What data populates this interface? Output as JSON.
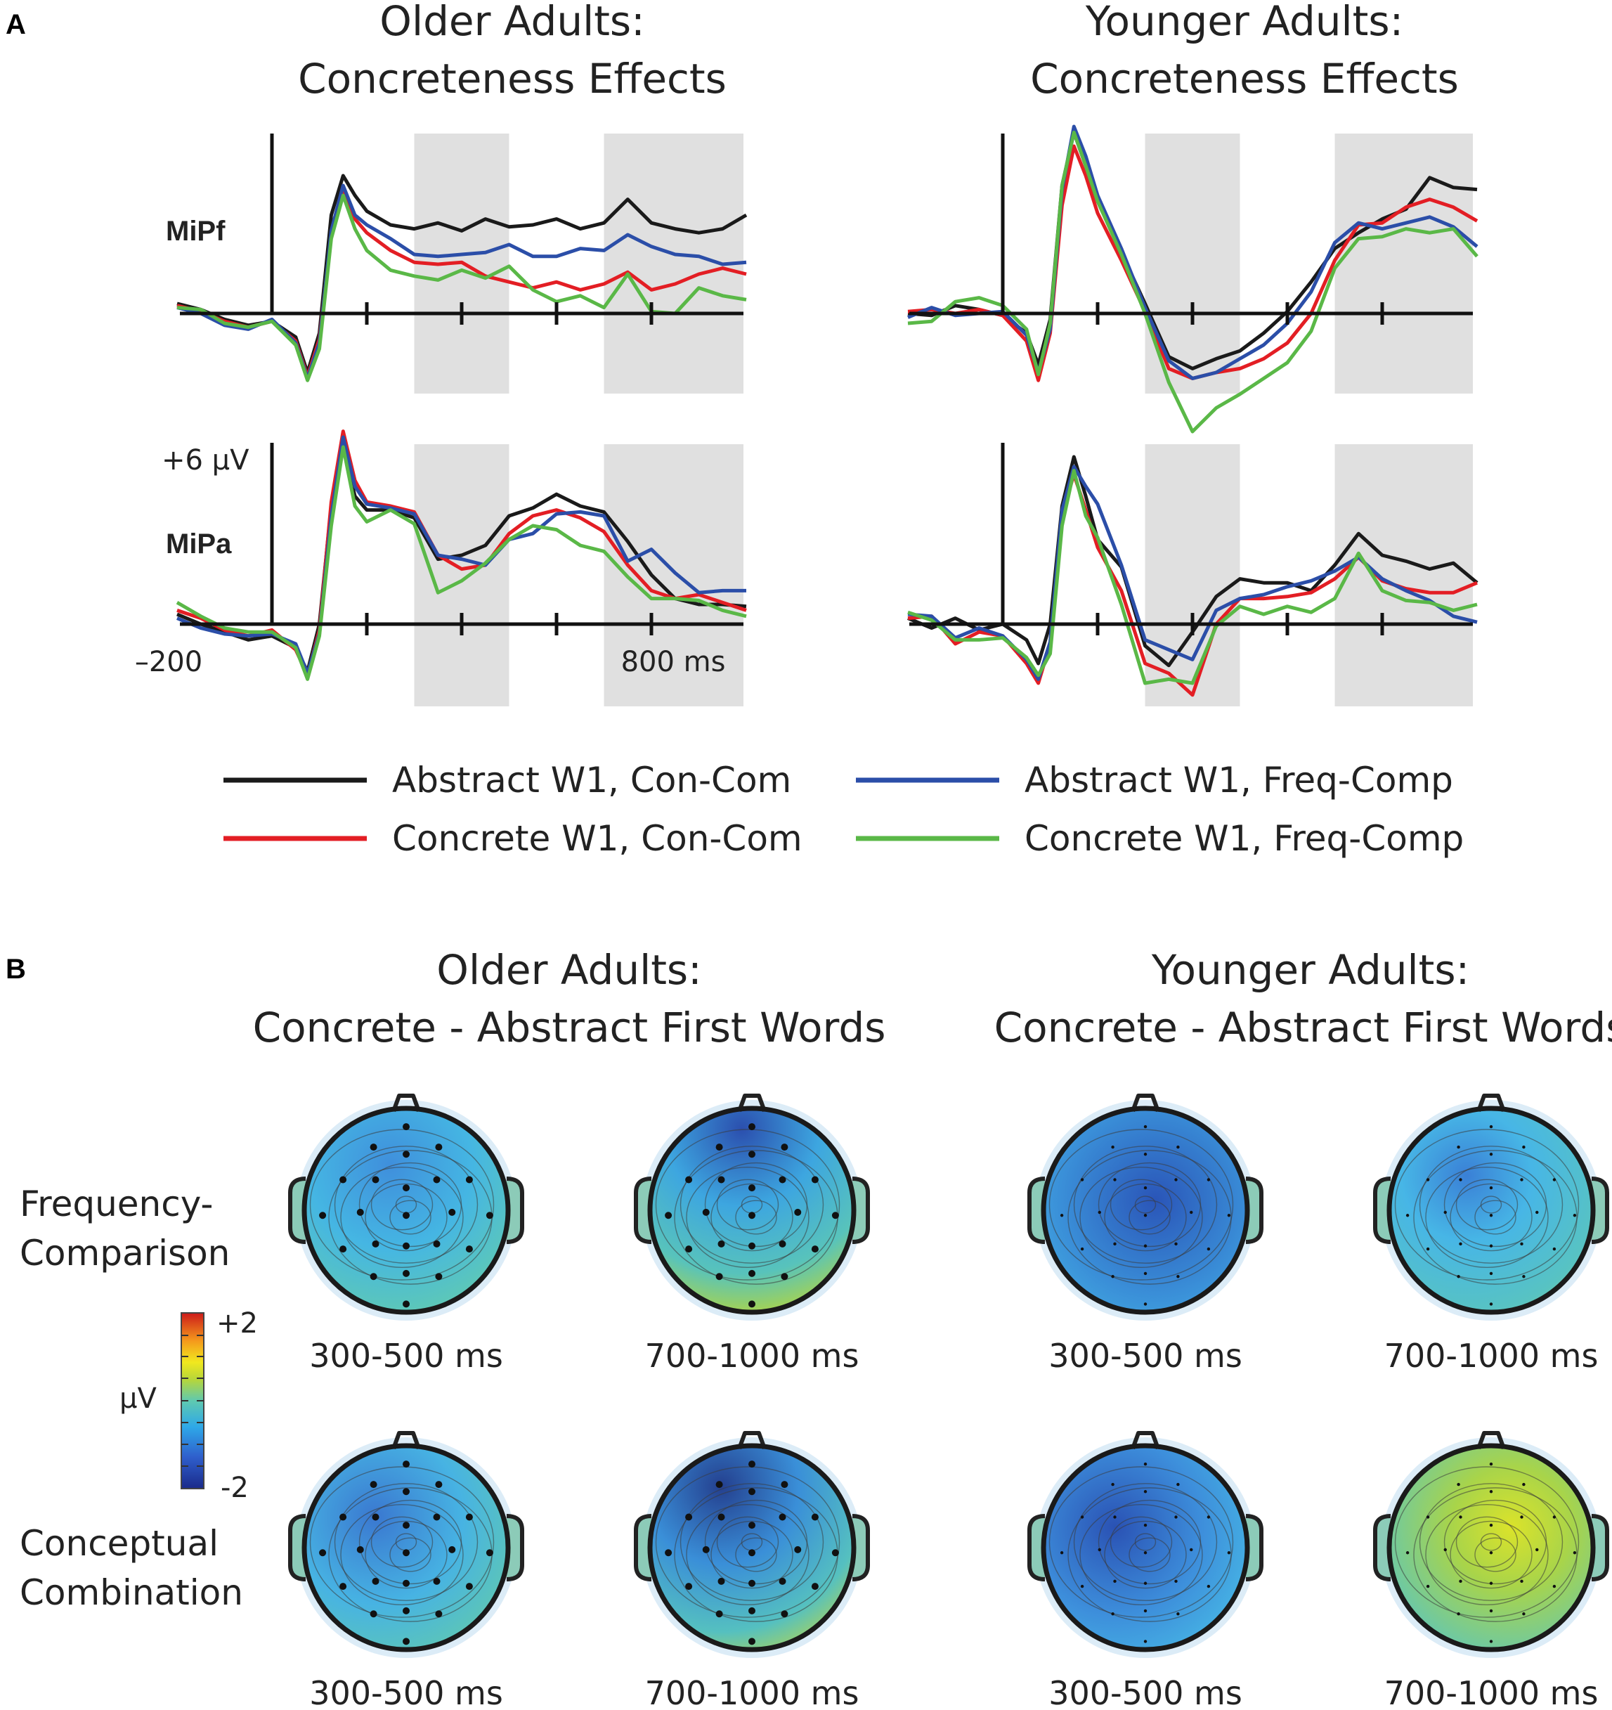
{
  "panel_a": {
    "letter": "A",
    "older_title": [
      "Older Adults:",
      "Concreteness Effects"
    ],
    "younger_title": [
      "Younger Adults:",
      "Concreteness Effects"
    ],
    "electrodes": [
      "MiPf",
      "MiPa"
    ],
    "scale_label": "+6 μV",
    "x_start_label": "–200",
    "x_end_label": "800 ms"
  },
  "panel_b": {
    "letter": "B",
    "older_title": [
      "Older Adults:",
      "Concrete - Abstract First Words"
    ],
    "younger_title": [
      "Younger Adults:",
      "Concrete - Abstract First Words"
    ],
    "row_labels": [
      [
        "Frequency-",
        "Comparison"
      ],
      [
        "Conceptual",
        "Combination"
      ]
    ],
    "windows": [
      "300-500 ms",
      "700-1000 ms"
    ],
    "colorbar": {
      "max_label": "+2",
      "min_label": "-2",
      "unit": "μV"
    }
  },
  "colors": {
    "abstract_concom": "#1a1a1a",
    "concrete_concom": "#e31e24",
    "abstract_freq": "#2b4ea8",
    "concrete_freq": "#5ab847",
    "shade": "#e0e0e0"
  },
  "chart_data": {
    "type": "line",
    "x_unit": "ms",
    "xlim": [
      -200,
      1000
    ],
    "ylim": [
      -4,
      10
    ],
    "y_scale_marker_uv": 6,
    "ticks_ms": [
      0,
      200,
      400,
      600,
      800
    ],
    "shaded_windows_ms": [
      [
        300,
        500
      ],
      [
        700,
        1000
      ]
    ],
    "legend": [
      {
        "key": "abstract_concom",
        "label": "Abstract W1,  Con-Com"
      },
      {
        "key": "abstract_freq",
        "label": "Abstract W1,   Freq-Comp"
      },
      {
        "key": "concrete_concom",
        "label": "Concrete W1, Con-Com"
      },
      {
        "key": "concrete_freq",
        "label": "Concrete W1,  Freq-Comp"
      }
    ],
    "x_ms": [
      -200,
      -150,
      -100,
      -50,
      0,
      50,
      75,
      100,
      125,
      150,
      175,
      200,
      250,
      300,
      350,
      400,
      450,
      500,
      550,
      600,
      650,
      700,
      750,
      800,
      850,
      900,
      950,
      1000
    ],
    "panels": [
      {
        "group": "Older Adults",
        "electrode": "MiPf",
        "series": {
          "abstract_concom": [
            0.5,
            0.2,
            -0.3,
            -0.6,
            -0.4,
            -1.2,
            -3.0,
            -1.0,
            5.0,
            7.0,
            6.0,
            5.2,
            4.5,
            4.3,
            4.6,
            4.2,
            4.8,
            4.4,
            4.5,
            4.8,
            4.3,
            4.6,
            5.8,
            4.6,
            4.3,
            4.1,
            4.3,
            5.0
          ],
          "abstract_freq": [
            0.3,
            0.0,
            -0.6,
            -0.8,
            -0.3,
            -1.5,
            -3.3,
            -1.5,
            4.2,
            6.5,
            5.0,
            4.5,
            3.8,
            3.0,
            2.9,
            3.0,
            3.1,
            3.5,
            2.9,
            2.9,
            3.3,
            3.2,
            4.0,
            3.4,
            3.0,
            2.9,
            2.5,
            2.6
          ],
          "concrete_concom": [
            0.4,
            0.1,
            -0.4,
            -0.7,
            -0.4,
            -1.4,
            -3.2,
            -1.3,
            4.0,
            6.3,
            4.8,
            4.1,
            3.2,
            2.6,
            2.5,
            2.6,
            1.9,
            1.6,
            1.3,
            1.6,
            1.2,
            1.5,
            2.1,
            1.2,
            1.5,
            2.0,
            2.3,
            2.0
          ],
          "concrete_freq": [
            0.3,
            0.2,
            -0.5,
            -0.7,
            -0.4,
            -1.6,
            -3.4,
            -1.8,
            3.8,
            6.0,
            4.3,
            3.2,
            2.2,
            1.9,
            1.7,
            2.2,
            1.8,
            2.4,
            1.2,
            0.6,
            0.9,
            0.3,
            2.0,
            0.1,
            0.0,
            1.3,
            0.9,
            0.7
          ]
        }
      },
      {
        "group": "Older Adults",
        "electrode": "MiPa",
        "series": {
          "abstract_concom": [
            0.5,
            0.0,
            -0.4,
            -0.8,
            -0.6,
            -1.2,
            -2.4,
            0.0,
            6.0,
            9.0,
            6.5,
            5.8,
            5.8,
            5.4,
            3.3,
            3.5,
            4.0,
            5.5,
            5.9,
            6.6,
            6.0,
            5.7,
            4.2,
            2.5,
            1.3,
            1.0,
            1.0,
            0.9
          ],
          "abstract_freq": [
            0.3,
            -0.2,
            -0.5,
            -0.6,
            -0.5,
            -1.0,
            -2.5,
            -0.5,
            5.5,
            9.5,
            7.0,
            6.1,
            5.9,
            5.6,
            3.5,
            3.3,
            3.0,
            4.3,
            4.6,
            5.6,
            5.7,
            5.5,
            3.2,
            3.8,
            2.6,
            1.6,
            1.7,
            1.7
          ],
          "concrete_concom": [
            0.7,
            0.3,
            -0.3,
            -0.6,
            -0.3,
            -1.3,
            -2.6,
            -0.3,
            6.2,
            9.8,
            7.3,
            6.2,
            6.0,
            5.7,
            3.5,
            2.8,
            3.0,
            4.6,
            5.5,
            5.8,
            5.4,
            4.7,
            3.0,
            1.7,
            1.3,
            1.5,
            1.1,
            0.7
          ],
          "concrete_freq": [
            1.1,
            0.4,
            -0.2,
            -0.4,
            -0.4,
            -1.2,
            -2.8,
            -0.6,
            5.0,
            9.0,
            6.0,
            5.2,
            5.8,
            5.1,
            1.6,
            2.2,
            3.1,
            4.3,
            5.0,
            4.8,
            4.0,
            3.7,
            2.4,
            1.3,
            1.3,
            1.2,
            0.7,
            0.4
          ]
        }
      },
      {
        "group": "Younger Adults",
        "electrode": "MiPf",
        "series": {
          "abstract_concom": [
            0.0,
            -0.1,
            0.4,
            0.2,
            -0.1,
            -1.0,
            -2.6,
            -0.3,
            6.5,
            9.2,
            7.5,
            5.7,
            3.1,
            0.5,
            -2.2,
            -2.8,
            -2.3,
            -1.9,
            -1.0,
            0.1,
            1.6,
            3.3,
            4.1,
            4.8,
            5.3,
            6.9,
            6.4,
            6.3
          ],
          "abstract_freq": [
            -0.2,
            0.3,
            -0.1,
            0.0,
            0.1,
            -1.1,
            -3.0,
            -0.8,
            6.3,
            9.5,
            8.0,
            6.0,
            3.3,
            0.3,
            -2.4,
            -3.3,
            -3.0,
            -2.3,
            -1.6,
            -0.5,
            1.1,
            3.6,
            4.6,
            4.3,
            4.6,
            4.9,
            4.4,
            3.4
          ],
          "concrete_concom": [
            0.1,
            0.2,
            0.0,
            0.2,
            -0.1,
            -1.4,
            -3.4,
            -1.0,
            5.5,
            8.5,
            7.0,
            5.1,
            2.7,
            0.1,
            -2.8,
            -3.3,
            -3.0,
            -2.8,
            -2.3,
            -1.5,
            0.0,
            2.7,
            4.5,
            4.6,
            5.4,
            5.8,
            5.4,
            4.7
          ],
          "concrete_freq": [
            -0.5,
            -0.4,
            0.6,
            0.8,
            0.4,
            -0.8,
            -3.1,
            -0.5,
            6.5,
            9.2,
            7.5,
            5.7,
            3.0,
            0.0,
            -3.5,
            -6.0,
            -4.8,
            -4.1,
            -3.3,
            -2.5,
            -0.9,
            2.3,
            3.8,
            3.9,
            4.3,
            4.1,
            4.3,
            2.9
          ]
        }
      },
      {
        "group": "Younger Adults",
        "electrode": "MiPa",
        "series": {
          "abstract_concom": [
            0.3,
            -0.2,
            0.3,
            -0.3,
            0.0,
            -0.8,
            -2.0,
            0.0,
            6.0,
            8.5,
            6.5,
            4.3,
            2.9,
            -1.1,
            -2.1,
            -0.4,
            1.4,
            2.3,
            2.1,
            2.1,
            1.7,
            3.0,
            4.6,
            3.5,
            3.2,
            2.8,
            3.1,
            2.1
          ],
          "abstract_freq": [
            0.5,
            0.4,
            -0.7,
            -0.2,
            -0.6,
            -1.8,
            -2.8,
            -0.9,
            5.8,
            8.0,
            7.0,
            6.1,
            3.0,
            -0.8,
            -1.3,
            -1.8,
            0.7,
            1.3,
            1.5,
            1.9,
            2.2,
            2.7,
            3.4,
            2.3,
            1.7,
            1.2,
            0.4,
            0.1
          ],
          "concrete_concom": [
            0.3,
            0.4,
            -1.0,
            -0.4,
            -0.6,
            -2.0,
            -3.0,
            -1.0,
            5.6,
            7.6,
            5.8,
            3.9,
            1.7,
            -2.0,
            -2.5,
            -3.6,
            0.0,
            1.3,
            1.3,
            1.4,
            1.6,
            2.3,
            3.4,
            2.2,
            1.8,
            1.6,
            1.6,
            2.1
          ],
          "concrete_freq": [
            0.6,
            0.2,
            -0.8,
            -0.8,
            -0.7,
            -1.7,
            -2.6,
            -1.5,
            5.0,
            7.8,
            5.5,
            4.4,
            1.0,
            -3.0,
            -2.8,
            -3.0,
            -0.1,
            0.9,
            0.5,
            0.9,
            0.6,
            1.3,
            3.6,
            1.7,
            1.2,
            1.1,
            0.7,
            1.0
          ]
        }
      }
    ]
  }
}
